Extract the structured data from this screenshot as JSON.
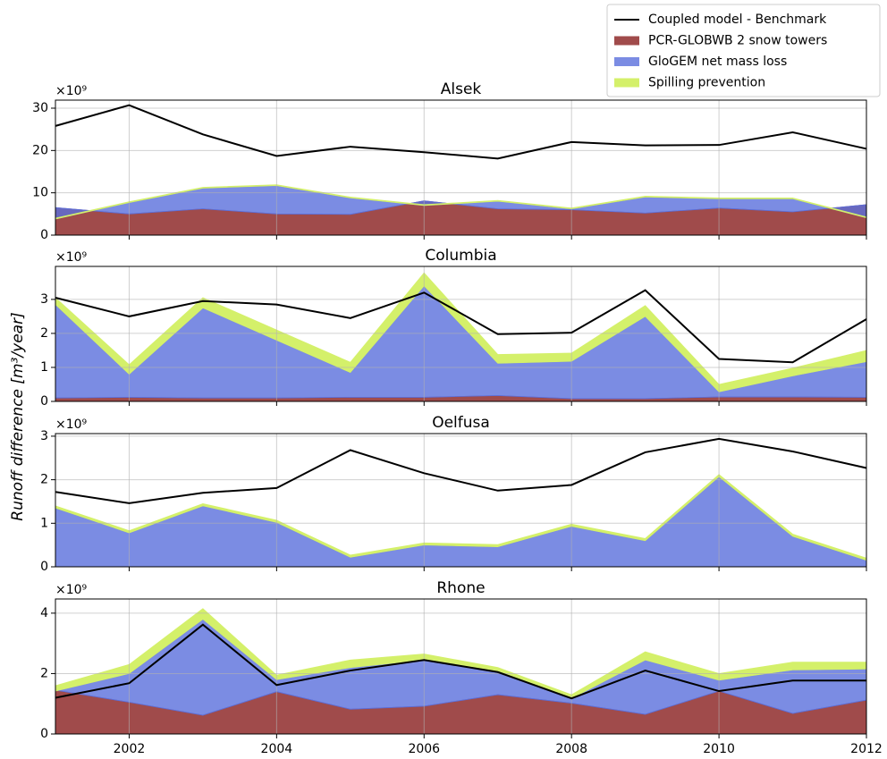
{
  "y_label": "Runoff difference [m³/year]",
  "chart_data": [
    {
      "type": "stacked_area",
      "title": "Alsek",
      "offset_label": "×10⁹",
      "x": [
        2001,
        2002,
        2003,
        2004,
        2005,
        2006,
        2007,
        2008,
        2009,
        2010,
        2011,
        2012
      ],
      "xlim": [
        2001,
        2012
      ],
      "xticks": [
        2002,
        2004,
        2006,
        2008,
        2010,
        2012
      ],
      "ylim": [
        0,
        31.9
      ],
      "yticks": [
        0,
        10,
        20,
        30
      ],
      "grid": true,
      "legend": "upper right",
      "series": [
        {
          "name": "Coupled model - Benchmark",
          "kind": "line",
          "color": "#000000",
          "values": [
            25.8,
            30.7,
            23.8,
            18.7,
            20.9,
            19.6,
            18.1,
            22.0,
            21.2,
            21.3,
            24.3,
            20.4
          ]
        },
        {
          "name": "PCR-GLOBWB 2 snow towers",
          "kind": "area",
          "color": "#a04b4b",
          "values": [
            6.5,
            5.0,
            6.2,
            5.0,
            4.9,
            8.1,
            6.2,
            6.0,
            5.2,
            6.4,
            5.5,
            7.2
          ]
        },
        {
          "name": "GloGEM net mass loss",
          "kind": "area",
          "color": "#5a6fdc",
          "values": [
            -2.7,
            2.7,
            4.9,
            6.7,
            3.9,
            -1.1,
            1.8,
            0.2,
            3.8,
            2.2,
            3.1,
            -3.1
          ]
        },
        {
          "name": "Spilling prevention",
          "kind": "area",
          "color": "#d4f06a",
          "values": [
            0.2,
            0.2,
            0.2,
            0.2,
            0.2,
            0.2,
            0.2,
            0.2,
            0.2,
            0.2,
            0.2,
            0.2
          ]
        }
      ]
    },
    {
      "type": "stacked_area",
      "title": "Columbia",
      "offset_label": "×10⁹",
      "x": [
        2001,
        2002,
        2003,
        2004,
        2005,
        2006,
        2007,
        2008,
        2009,
        2010,
        2011,
        2012
      ],
      "xlim": [
        2001,
        2012
      ],
      "xticks": [
        2002,
        2004,
        2006,
        2008,
        2010,
        2012
      ],
      "ylim": [
        0,
        3.97
      ],
      "yticks": [
        0,
        1,
        2,
        3
      ],
      "grid": true,
      "series": [
        {
          "name": "Coupled model - Benchmark",
          "kind": "line",
          "color": "#000000",
          "values": [
            3.05,
            2.5,
            2.95,
            2.85,
            2.45,
            3.2,
            1.98,
            2.02,
            3.27,
            1.25,
            1.15,
            2.42
          ]
        },
        {
          "name": "PCR-GLOBWB 2 snow towers",
          "kind": "area",
          "color": "#a04b4b",
          "values": [
            0.1,
            0.12,
            0.1,
            0.1,
            0.12,
            0.12,
            0.17,
            0.08,
            0.08,
            0.13,
            0.13,
            0.12
          ]
        },
        {
          "name": "GloGEM net mass loss",
          "kind": "area",
          "color": "#5a6fdc",
          "values": [
            2.75,
            0.68,
            2.65,
            1.7,
            0.73,
            3.28,
            0.95,
            1.1,
            2.42,
            0.15,
            0.62,
            1.05
          ]
        },
        {
          "name": "Spilling prevention",
          "kind": "area",
          "color": "#d4f06a",
          "values": [
            0.2,
            0.28,
            0.3,
            0.3,
            0.3,
            0.38,
            0.26,
            0.24,
            0.32,
            0.22,
            0.23,
            0.33
          ]
        }
      ]
    },
    {
      "type": "stacked_area",
      "title": "Oelfusa",
      "offset_label": "×10⁹",
      "x": [
        2001,
        2002,
        2003,
        2004,
        2005,
        2006,
        2007,
        2008,
        2009,
        2010,
        2011,
        2012
      ],
      "xlim": [
        2001,
        2012
      ],
      "xticks": [
        2002,
        2004,
        2006,
        2008,
        2010,
        2012
      ],
      "ylim": [
        0,
        3.06
      ],
      "yticks": [
        0,
        1,
        2,
        3
      ],
      "grid": true,
      "series": [
        {
          "name": "Coupled model - Benchmark",
          "kind": "line",
          "color": "#000000",
          "values": [
            1.72,
            1.46,
            1.7,
            1.81,
            2.68,
            2.15,
            1.75,
            1.88,
            2.63,
            2.94,
            2.65,
            2.27
          ]
        },
        {
          "name": "PCR-GLOBWB 2 snow towers",
          "kind": "area",
          "color": "#a04b4b",
          "values": [
            0,
            0,
            0,
            0,
            0,
            0,
            0,
            0,
            0,
            0,
            0,
            0
          ]
        },
        {
          "name": "GloGEM net mass loss",
          "kind": "area",
          "color": "#5a6fdc",
          "values": [
            1.35,
            0.78,
            1.4,
            1.02,
            0.22,
            0.5,
            0.46,
            0.93,
            0.6,
            2.07,
            0.7,
            0.15
          ]
        },
        {
          "name": "Spilling prevention",
          "kind": "area",
          "color": "#d4f06a",
          "values": [
            0.05,
            0.05,
            0.05,
            0.05,
            0.05,
            0.05,
            0.05,
            0.05,
            0.05,
            0.05,
            0.05,
            0.05
          ]
        }
      ]
    },
    {
      "type": "stacked_area",
      "title": "Rhone",
      "offset_label": "×10⁹",
      "x": [
        2001,
        2002,
        2003,
        2004,
        2005,
        2006,
        2007,
        2008,
        2009,
        2010,
        2011,
        2012
      ],
      "xlim": [
        2001,
        2012
      ],
      "xticks": [
        2002,
        2004,
        2006,
        2008,
        2010,
        2012
      ],
      "ylim": [
        0,
        4.47
      ],
      "yticks": [
        0,
        2,
        4
      ],
      "grid": true,
      "series": [
        {
          "name": "Coupled model - Benchmark",
          "kind": "line",
          "color": "#000000",
          "values": [
            1.2,
            1.68,
            3.62,
            1.62,
            2.1,
            2.45,
            2.05,
            1.18,
            2.1,
            1.42,
            1.77,
            1.77
          ]
        },
        {
          "name": "PCR-GLOBWB 2 snow towers",
          "kind": "area",
          "color": "#a04b4b",
          "values": [
            1.45,
            1.05,
            0.62,
            1.4,
            0.82,
            0.92,
            1.3,
            1.02,
            0.65,
            1.42,
            0.68,
            1.12
          ]
        },
        {
          "name": "GloGEM net mass loss",
          "kind": "area",
          "color": "#5a6fdc",
          "values": [
            -0.03,
            0.95,
            3.18,
            0.4,
            1.38,
            1.53,
            0.75,
            0.16,
            1.8,
            0.36,
            1.44,
            1.03
          ]
        },
        {
          "name": "Spilling prevention",
          "kind": "area",
          "color": "#d4f06a",
          "values": [
            0.18,
            0.3,
            0.35,
            0.15,
            0.25,
            0.2,
            0.15,
            0.12,
            0.27,
            0.22,
            0.26,
            0.23
          ]
        }
      ]
    }
  ]
}
